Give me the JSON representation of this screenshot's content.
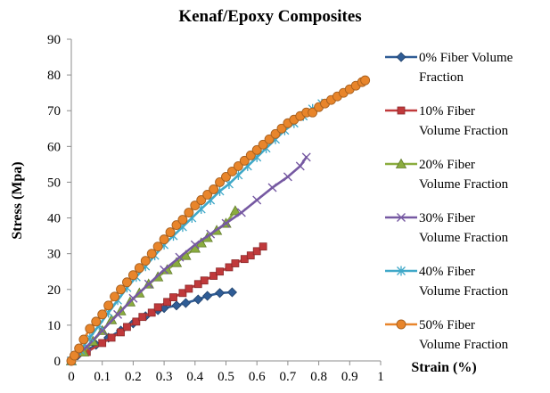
{
  "chart_data": {
    "type": "line",
    "title": "Kenaf/Epoxy Composites",
    "xlabel": "Strain (%)",
    "ylabel": "Stress (Mpa)",
    "xlim": [
      0,
      1
    ],
    "ylim": [
      0,
      90
    ],
    "x_ticks": [
      "0",
      "0.1",
      "0.2",
      "0.3",
      "0.4",
      "0.5",
      "0.6",
      "0.7",
      "0.8",
      "0.9",
      "1"
    ],
    "y_ticks": [
      "0",
      "10",
      "20",
      "30",
      "40",
      "50",
      "60",
      "70",
      "80",
      "90"
    ],
    "grid": false,
    "legend_position": "right",
    "series": [
      {
        "name": "0% Fiber Volume Fraction",
        "legend_lines": [
          "0% Fiber Volume",
          "Fraction"
        ],
        "color": "#2f5c95",
        "marker": "diamond",
        "points": [
          [
            0,
            0
          ],
          [
            0.02,
            1.5
          ],
          [
            0.05,
            3
          ],
          [
            0.08,
            4.5
          ],
          [
            0.12,
            6.5
          ],
          [
            0.16,
            8.5
          ],
          [
            0.2,
            10.5
          ],
          [
            0.24,
            12.5
          ],
          [
            0.28,
            14.2
          ],
          [
            0.3,
            14.8
          ],
          [
            0.34,
            15.5
          ],
          [
            0.37,
            16.2
          ],
          [
            0.41,
            17.2
          ],
          [
            0.44,
            18.2
          ],
          [
            0.48,
            19
          ],
          [
            0.52,
            19.2
          ]
        ]
      },
      {
        "name": "10% Fiber Volume Fraction",
        "legend_lines": [
          "10% Fiber",
          "Volume Fraction"
        ],
        "color": "#c0393b",
        "marker": "square",
        "points": [
          [
            0,
            0
          ],
          [
            0.05,
            2.5
          ],
          [
            0.1,
            5
          ],
          [
            0.13,
            6.5
          ],
          [
            0.16,
            8
          ],
          [
            0.18,
            9.5
          ],
          [
            0.21,
            11
          ],
          [
            0.23,
            12.3
          ],
          [
            0.26,
            13.5
          ],
          [
            0.28,
            15
          ],
          [
            0.31,
            16.5
          ],
          [
            0.33,
            17.8
          ],
          [
            0.36,
            19
          ],
          [
            0.38,
            20.2
          ],
          [
            0.41,
            21.5
          ],
          [
            0.43,
            22.5
          ],
          [
            0.46,
            23.8
          ],
          [
            0.48,
            25
          ],
          [
            0.51,
            26.2
          ],
          [
            0.53,
            27.3
          ],
          [
            0.56,
            28.5
          ],
          [
            0.58,
            29.5
          ],
          [
            0.6,
            30.7
          ],
          [
            0.62,
            32
          ]
        ]
      },
      {
        "name": "20% Fiber Volume Fraction",
        "legend_lines": [
          "20% Fiber",
          "Volume Fraction"
        ],
        "color": "#8aac3e",
        "marker": "triangle",
        "points": [
          [
            0,
            0
          ],
          [
            0.04,
            2.5
          ],
          [
            0.07,
            5.5
          ],
          [
            0.1,
            8.5
          ],
          [
            0.13,
            11.5
          ],
          [
            0.16,
            14
          ],
          [
            0.19,
            16.5
          ],
          [
            0.22,
            19
          ],
          [
            0.25,
            21.5
          ],
          [
            0.28,
            23.5
          ],
          [
            0.31,
            25.5
          ],
          [
            0.34,
            27.5
          ],
          [
            0.37,
            29.5
          ],
          [
            0.4,
            31.5
          ],
          [
            0.42,
            33
          ],
          [
            0.44,
            34.5
          ],
          [
            0.47,
            36.5
          ],
          [
            0.5,
            38.5
          ],
          [
            0.53,
            42
          ]
        ]
      },
      {
        "name": "30% Fiber Volume Fraction",
        "legend_lines": [
          "30% Fiber",
          "Volume Fraction"
        ],
        "color": "#7659a2",
        "marker": "x",
        "points": [
          [
            0,
            0
          ],
          [
            0.05,
            4
          ],
          [
            0.1,
            8.5
          ],
          [
            0.15,
            13
          ],
          [
            0.2,
            17.5
          ],
          [
            0.25,
            21.5
          ],
          [
            0.3,
            25.5
          ],
          [
            0.35,
            29
          ],
          [
            0.4,
            32.5
          ],
          [
            0.45,
            35.5
          ],
          [
            0.5,
            38.5
          ],
          [
            0.55,
            41.5
          ],
          [
            0.6,
            45
          ],
          [
            0.65,
            48.5
          ],
          [
            0.7,
            51.5
          ],
          [
            0.74,
            54.5
          ],
          [
            0.76,
            57
          ]
        ]
      },
      {
        "name": "40% Fiber Volume Fraction",
        "legend_lines": [
          "40% Fiber",
          "Volume Fraction"
        ],
        "color": "#3fa8c8",
        "marker": "asterisk",
        "points": [
          [
            0,
            0
          ],
          [
            0.03,
            3
          ],
          [
            0.06,
            6.5
          ],
          [
            0.09,
            10
          ],
          [
            0.12,
            13.5
          ],
          [
            0.15,
            17
          ],
          [
            0.18,
            20.5
          ],
          [
            0.21,
            23.5
          ],
          [
            0.24,
            26.5
          ],
          [
            0.27,
            29.5
          ],
          [
            0.3,
            32.5
          ],
          [
            0.33,
            35
          ],
          [
            0.36,
            37.5
          ],
          [
            0.39,
            40
          ],
          [
            0.42,
            42.5
          ],
          [
            0.45,
            45
          ],
          [
            0.48,
            47.5
          ],
          [
            0.51,
            49.5
          ],
          [
            0.54,
            52
          ],
          [
            0.57,
            54.5
          ],
          [
            0.6,
            57
          ],
          [
            0.63,
            59.5
          ],
          [
            0.66,
            62
          ],
          [
            0.69,
            64.5
          ],
          [
            0.72,
            66.5
          ],
          [
            0.75,
            68.5
          ],
          [
            0.78,
            70.5
          ],
          [
            0.81,
            72
          ]
        ]
      },
      {
        "name": "50% Fiber Volume Fraction",
        "legend_lines": [
          "50% Fiber",
          "Volume Fraction"
        ],
        "color": "#e8852b",
        "marker": "circle",
        "points": [
          [
            0,
            0
          ],
          [
            0.01,
            1.5
          ],
          [
            0.025,
            3.5
          ],
          [
            0.04,
            6
          ],
          [
            0.06,
            9
          ],
          [
            0.08,
            11
          ],
          [
            0.1,
            13
          ],
          [
            0.12,
            15.5
          ],
          [
            0.14,
            18
          ],
          [
            0.16,
            20
          ],
          [
            0.18,
            22
          ],
          [
            0.2,
            24
          ],
          [
            0.22,
            26
          ],
          [
            0.24,
            28
          ],
          [
            0.26,
            30
          ],
          [
            0.28,
            32
          ],
          [
            0.3,
            34
          ],
          [
            0.32,
            36
          ],
          [
            0.34,
            38
          ],
          [
            0.36,
            39.5
          ],
          [
            0.38,
            41.5
          ],
          [
            0.4,
            43.5
          ],
          [
            0.42,
            45
          ],
          [
            0.44,
            46.5
          ],
          [
            0.46,
            48
          ],
          [
            0.48,
            50
          ],
          [
            0.5,
            51.5
          ],
          [
            0.52,
            53
          ],
          [
            0.54,
            54.5
          ],
          [
            0.56,
            56
          ],
          [
            0.58,
            57.5
          ],
          [
            0.6,
            59
          ],
          [
            0.62,
            60.5
          ],
          [
            0.64,
            62
          ],
          [
            0.66,
            63.5
          ],
          [
            0.68,
            65
          ],
          [
            0.7,
            66.5
          ],
          [
            0.72,
            67.5
          ],
          [
            0.74,
            68.5
          ],
          [
            0.76,
            69.5
          ],
          [
            0.78,
            69.5
          ],
          [
            0.8,
            71
          ],
          [
            0.82,
            72
          ],
          [
            0.84,
            73
          ],
          [
            0.86,
            74
          ],
          [
            0.88,
            75
          ],
          [
            0.9,
            76
          ],
          [
            0.92,
            77
          ],
          [
            0.94,
            78
          ],
          [
            0.95,
            78.5
          ]
        ]
      }
    ]
  }
}
